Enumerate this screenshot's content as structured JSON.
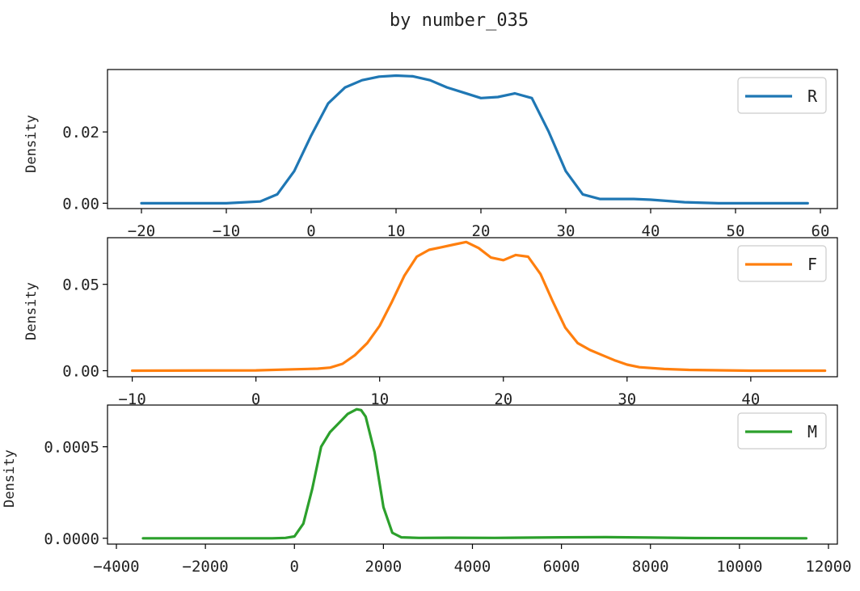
{
  "title": "by number_035",
  "chart_data": [
    {
      "type": "line",
      "ylabel": "Density",
      "xlim": [
        -24,
        62
      ],
      "ylim": [
        -0.0015,
        0.0375
      ],
      "xticks": [
        -20,
        -10,
        0,
        10,
        20,
        30,
        40,
        50,
        60
      ],
      "xtick_labels": [
        "−20",
        "−10",
        "0",
        "10",
        "20",
        "30",
        "40",
        "50",
        "60"
      ],
      "yticks": [
        0.0,
        0.02
      ],
      "ytick_labels": [
        "0.00",
        "0.02"
      ],
      "legend_position": "top-right",
      "series": [
        {
          "name": "R",
          "color": "#1f77b4",
          "x": [
            -20,
            -10,
            -6,
            -4,
            -2,
            0,
            2,
            4,
            6,
            8,
            10,
            12,
            14,
            16,
            18,
            20,
            22,
            24,
            26,
            28,
            30,
            32,
            34,
            36,
            38,
            40,
            44,
            48,
            52,
            58.5
          ],
          "y": [
            0.0,
            0.0,
            0.0005,
            0.0025,
            0.009,
            0.019,
            0.028,
            0.0325,
            0.0345,
            0.0355,
            0.0358,
            0.0356,
            0.0345,
            0.0325,
            0.031,
            0.0295,
            0.0298,
            0.0308,
            0.0295,
            0.02,
            0.009,
            0.0025,
            0.0012,
            0.0012,
            0.0012,
            0.001,
            0.0003,
            0.0,
            0.0,
            0.0
          ]
        }
      ]
    },
    {
      "type": "line",
      "ylabel": "Density",
      "xlim": [
        -12,
        47
      ],
      "ylim": [
        -0.0035,
        0.077
      ],
      "xticks": [
        -10,
        0,
        10,
        20,
        30,
        40
      ],
      "xtick_labels": [
        "−10",
        "0",
        "10",
        "20",
        "30",
        "40"
      ],
      "yticks": [
        0.0,
        0.05
      ],
      "ytick_labels": [
        "0.00",
        "0.05"
      ],
      "legend_position": "top-right",
      "series": [
        {
          "name": "F",
          "color": "#ff7f0e",
          "x": [
            -10,
            0,
            3,
            5,
            6,
            7,
            8,
            9,
            10,
            11,
            12,
            13,
            14,
            15,
            16,
            17,
            18,
            19,
            20,
            21,
            22,
            23,
            24,
            25,
            26,
            27,
            28,
            29,
            30,
            31,
            33,
            35,
            40,
            46
          ],
          "y": [
            0.0,
            0.0002,
            0.0008,
            0.0012,
            0.0018,
            0.004,
            0.009,
            0.016,
            0.026,
            0.04,
            0.055,
            0.066,
            0.07,
            0.0715,
            0.073,
            0.0745,
            0.071,
            0.0655,
            0.064,
            0.067,
            0.066,
            0.056,
            0.04,
            0.025,
            0.016,
            0.012,
            0.009,
            0.006,
            0.0035,
            0.002,
            0.001,
            0.0005,
            0.0,
            0.0
          ]
        }
      ]
    },
    {
      "type": "line",
      "ylabel": "Density",
      "xlim": [
        -4200,
        12200
      ],
      "ylim": [
        -3.2e-05,
        0.000728
      ],
      "xticks": [
        -4000,
        -2000,
        0,
        2000,
        4000,
        6000,
        8000,
        10000,
        12000
      ],
      "xtick_labels": [
        "−4000",
        "−2000",
        "0",
        "2000",
        "4000",
        "6000",
        "8000",
        "10000",
        "12000"
      ],
      "yticks": [
        0.0,
        0.0005
      ],
      "ytick_labels": [
        "0.0000",
        "0.0005"
      ],
      "legend_position": "top-right",
      "series": [
        {
          "name": "M",
          "color": "#2ca02c",
          "x": [
            -3400,
            -500,
            -200,
            0,
            200,
            400,
            600,
            800,
            1000,
            1200,
            1400,
            1500,
            1600,
            1800,
            2000,
            2200,
            2400,
            2800,
            3500,
            4500,
            6000,
            7000,
            8000,
            9000,
            11500
          ],
          "y": [
            0.0,
            0.0,
            2e-06,
            1e-05,
            8e-05,
            0.00027,
            0.0005,
            0.00058,
            0.00063,
            0.00068,
            0.000705,
            0.0007,
            0.000665,
            0.00047,
            0.00017,
            3e-05,
            5e-06,
            2e-06,
            3e-06,
            2e-06,
            5e-06,
            6e-06,
            4e-06,
            1e-06,
            0.0
          ]
        }
      ]
    }
  ]
}
